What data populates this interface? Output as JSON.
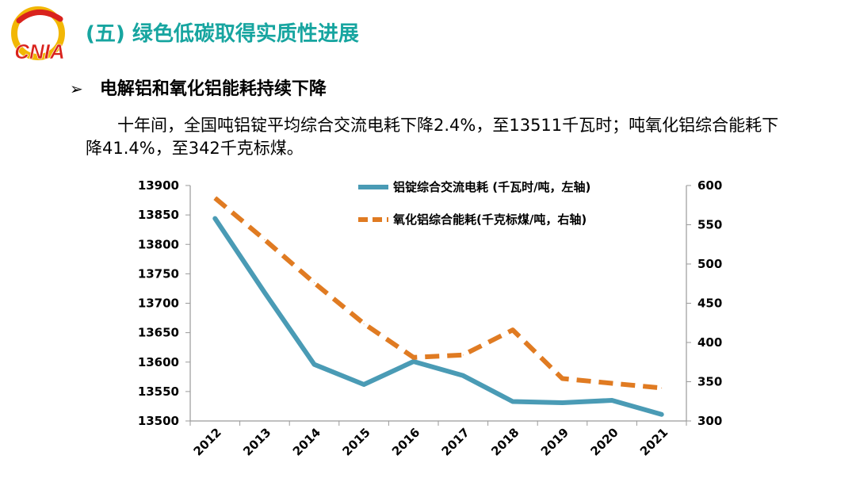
{
  "header": {
    "logo_text": "CNIA",
    "title": "(五) 绿色低碳取得实质性进展"
  },
  "bullet": {
    "arrow": "➢",
    "text": "电解铝和氧化铝能耗持续下降"
  },
  "paragraph": "十年间，全国吨铝锭平均综合交流电耗下降2.4%，至13511千瓦时；吨氧化铝综合能耗下降41.4%，至342千克标煤。",
  "colors": {
    "title": "#17a5a0",
    "series_electricity": "#4a9bb5",
    "series_energy": "#e07b22"
  },
  "chart_data": {
    "type": "line",
    "x": [
      "2012",
      "2013",
      "2014",
      "2015",
      "2016",
      "2017",
      "2018",
      "2019",
      "2020",
      "2021"
    ],
    "y_left": {
      "min": 13500,
      "max": 13900,
      "ticks": [
        13500,
        13550,
        13600,
        13650,
        13700,
        13750,
        13800,
        13850,
        13900
      ]
    },
    "y_right": {
      "min": 300,
      "max": 600,
      "ticks": [
        300,
        350,
        400,
        450,
        500,
        550,
        600
      ]
    },
    "series": [
      {
        "name": "铝锭综合交流电耗 (千瓦时/吨，左轴)",
        "axis": "left",
        "style": "solid",
        "color": "#4a9bb5",
        "values": [
          13844,
          13718,
          13596,
          13562,
          13601,
          13577,
          13533,
          13531,
          13535,
          13511
        ]
      },
      {
        "name": "氧化铝综合能耗(千克标煤/吨，右轴)",
        "axis": "right",
        "style": "dashed",
        "color": "#e07b22",
        "values": [
          584,
          531,
          476,
          424,
          381,
          384,
          416,
          354,
          348,
          342
        ]
      }
    ],
    "legend_position": "top-right",
    "grid": false
  }
}
